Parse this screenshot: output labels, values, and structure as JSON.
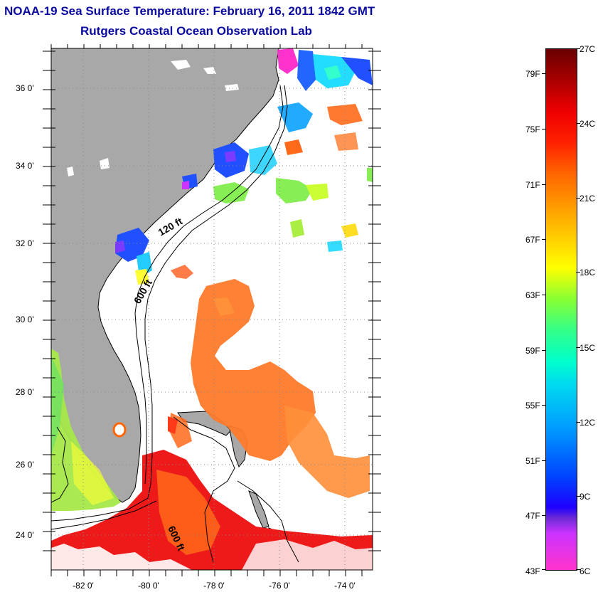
{
  "title": {
    "line1": "NOAA-19 Sea Surface Temperature:  February 16, 2011 1842 GMT",
    "line2": "Rutgers Coastal Ocean Observation Lab"
  },
  "map": {
    "lat_labels": [
      "36 0'",
      "34 0'",
      "32 0'",
      "30 0'",
      "28 0'",
      "26 0'",
      "24 0'"
    ],
    "lon_labels": [
      "-82 0'",
      "-80 0'",
      "-78 0'",
      "-76 0'",
      "-74 0'"
    ],
    "isobath_labels": [
      "120 ft",
      "600 ft",
      "600 ft"
    ],
    "colors": {
      "land": "#a8a8a8",
      "ocean_cloud": "#ffffff",
      "warm": "#ff6a1a",
      "gulf_stream": "#ee1a1a"
    }
  },
  "colorbar": {
    "fahrenheit_labels": [
      "79F",
      "75F",
      "71F",
      "67F",
      "63F",
      "59F",
      "55F",
      "51F",
      "47F",
      "43F"
    ],
    "celsius_labels": [
      "27C",
      "24C",
      "21C",
      "18C",
      "15C",
      "12C",
      "9C",
      "6C"
    ]
  }
}
